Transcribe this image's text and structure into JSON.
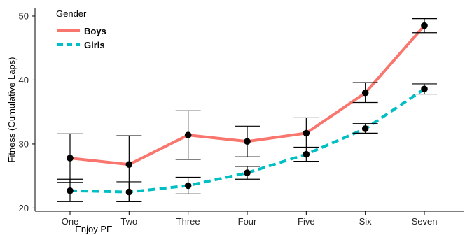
{
  "chart_data": {
    "type": "line",
    "title": "",
    "xlabel": "Enjoy PE",
    "ylabel": "Fitness (Cumulative Laps)",
    "categories": [
      "One",
      "Two",
      "Three",
      "Four",
      "Five",
      "Six",
      "Seven"
    ],
    "ylim": [
      19.5,
      51.2
    ],
    "yticks": [
      20,
      30,
      40,
      50
    ],
    "grid": false,
    "legend": {
      "title": "Gender",
      "placement": "top-left"
    },
    "series": [
      {
        "name": "Boys",
        "color": "#F8766D",
        "line_style": "solid",
        "values": [
          27.8,
          26.8,
          31.4,
          30.4,
          31.7,
          38.0,
          48.5
        ],
        "error_low": [
          24.0,
          21.0,
          27.6,
          28.0,
          29.4,
          36.5,
          47.4
        ],
        "error_high": [
          31.6,
          31.3,
          35.2,
          32.8,
          34.1,
          39.6,
          49.6
        ]
      },
      {
        "name": "Girls",
        "color": "#00BFC4",
        "line_style": "dashed",
        "values": [
          22.7,
          22.5,
          23.5,
          25.5,
          28.4,
          32.4,
          38.6
        ],
        "error_low": [
          21.0,
          21.0,
          22.2,
          24.5,
          27.3,
          31.7,
          37.8
        ],
        "error_high": [
          24.5,
          24.1,
          24.8,
          26.5,
          29.5,
          33.2,
          39.4
        ]
      }
    ]
  }
}
